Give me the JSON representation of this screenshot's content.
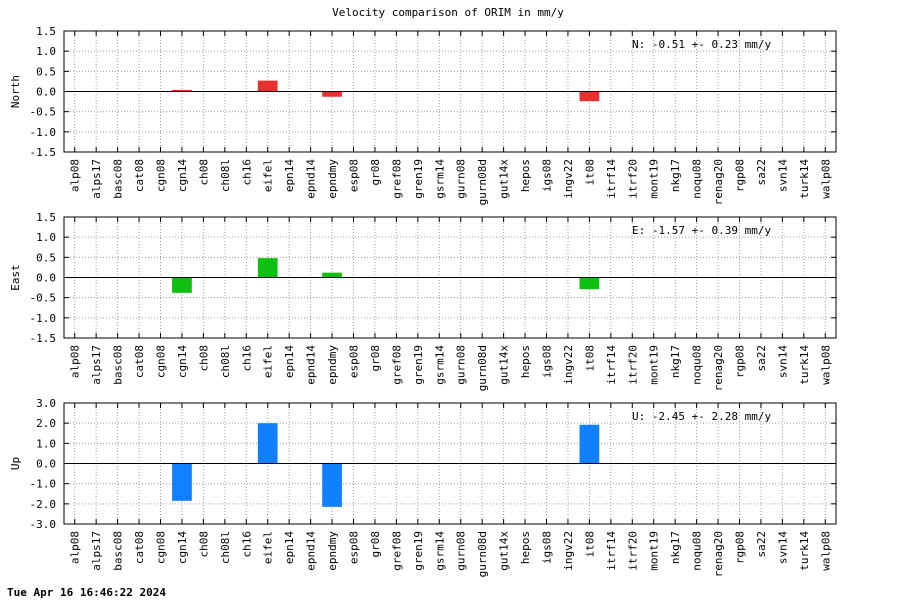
{
  "title": "Velocity comparison of ORIM in mm/y",
  "timestamp": "Tue Apr 16 16:46:22 2024",
  "chart_data": [
    {
      "type": "bar",
      "ylabel": "North",
      "annotation": "N:  -0.51 +-  0.23 mm/y",
      "color": "#e83030",
      "ylim": [
        -1.5,
        1.5
      ],
      "yticks": [
        "1.5",
        "1.0",
        "0.5",
        "0.0",
        "-0.5",
        "-1.0",
        "-1.5"
      ],
      "grid": true,
      "categories": [
        "alp08",
        "alps17",
        "basc08",
        "cat08",
        "cgn08",
        "cgn14",
        "ch08",
        "ch08l",
        "ch16",
        "eifel",
        "epn14",
        "epnd14",
        "epndmy",
        "esp08",
        "gr08",
        "gref08",
        "gren19",
        "gsrm14",
        "gurn08",
        "gurn08d",
        "gut14x",
        "hepos",
        "igs08",
        "ingv22",
        "it08",
        "itrf14",
        "itrf20",
        "mont19",
        "nkg17",
        "noqu08",
        "renag20",
        "rgp08",
        "sa22",
        "svn14",
        "turk14",
        "walp08"
      ],
      "values": [
        0,
        0,
        0,
        0,
        0,
        0.04,
        0,
        0,
        0,
        0.27,
        0,
        0,
        -0.13,
        0,
        0,
        0,
        0,
        0,
        0,
        0,
        0,
        0,
        0,
        0,
        -0.24,
        0,
        0,
        0,
        0,
        0,
        0,
        0,
        0,
        0,
        0,
        0
      ]
    },
    {
      "type": "bar",
      "ylabel": "East",
      "annotation": "E:  -1.57 +-  0.39 mm/y",
      "color": "#10c010",
      "ylim": [
        -1.5,
        1.5
      ],
      "yticks": [
        "1.5",
        "1.0",
        "0.5",
        "0.0",
        "-0.5",
        "-1.0",
        "-1.5"
      ],
      "grid": true,
      "categories": [
        "alp08",
        "alps17",
        "basc08",
        "cat08",
        "cgn08",
        "cgn14",
        "ch08",
        "ch08l",
        "ch16",
        "eifel",
        "epn14",
        "epnd14",
        "epndmy",
        "esp08",
        "gr08",
        "gref08",
        "gren19",
        "gsrm14",
        "gurn08",
        "gurn08d",
        "gut14x",
        "hepos",
        "igs08",
        "ingv22",
        "it08",
        "itrf14",
        "itrf20",
        "mont19",
        "nkg17",
        "noqu08",
        "renag20",
        "rgp08",
        "sa22",
        "svn14",
        "turk14",
        "walp08"
      ],
      "values": [
        0,
        0,
        0,
        0,
        0,
        -0.38,
        0,
        0,
        0,
        0.48,
        0,
        0,
        0.12,
        0,
        0,
        0,
        0,
        0,
        0,
        0,
        0,
        0,
        0,
        0,
        -0.29,
        0,
        0,
        0,
        0,
        0,
        0,
        0,
        0,
        0,
        0,
        0
      ]
    },
    {
      "type": "bar",
      "ylabel": "Up",
      "annotation": "U:  -2.45 +-  2.28 mm/y",
      "color": "#1080ff",
      "ylim": [
        -3.0,
        3.0
      ],
      "yticks": [
        "3.0",
        "2.0",
        "1.0",
        "0.0",
        "-1.0",
        "-2.0",
        "-3.0"
      ],
      "grid": true,
      "categories": [
        "alp08",
        "alps17",
        "basc08",
        "cat08",
        "cgn08",
        "cgn14",
        "ch08",
        "ch08l",
        "ch16",
        "eifel",
        "epn14",
        "epnd14",
        "epndmy",
        "esp08",
        "gr08",
        "gref08",
        "gren19",
        "gsrm14",
        "gurn08",
        "gurn08d",
        "gut14x",
        "hepos",
        "igs08",
        "ingv22",
        "it08",
        "itrf14",
        "itrf20",
        "mont19",
        "nkg17",
        "noqu08",
        "renag20",
        "rgp08",
        "sa22",
        "svn14",
        "turk14",
        "walp08"
      ],
      "values": [
        0,
        0,
        0,
        0,
        0,
        -1.85,
        0,
        0,
        0,
        2.0,
        0,
        0,
        -2.15,
        0,
        0,
        0,
        0,
        0,
        0,
        0,
        0,
        0,
        0,
        0,
        1.92,
        0,
        0,
        0,
        0,
        0,
        0,
        0,
        0,
        0,
        0,
        0
      ]
    }
  ]
}
